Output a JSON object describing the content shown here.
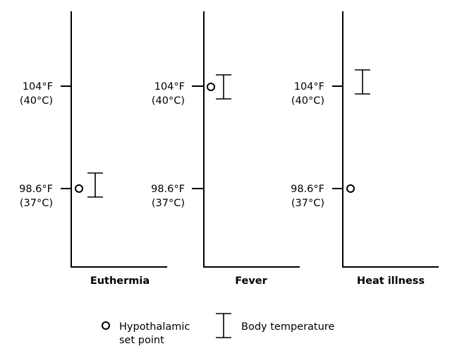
{
  "panels": [
    {
      "title": "Euthermia",
      "ticks": {
        "high": {
          "f": "104°F",
          "c": "(40°C)"
        },
        "low": {
          "f": "98.6°F",
          "c": "(37°C)"
        }
      },
      "set_point": "98.6°F",
      "body_temperature_range": "around 98.6°F"
    },
    {
      "title": "Fever",
      "ticks": {
        "high": {
          "f": "104°F",
          "c": "(40°C)"
        },
        "low": {
          "f": "98.6°F",
          "c": "(37°C)"
        }
      },
      "set_point": "104°F",
      "body_temperature_range": "around 104°F"
    },
    {
      "title": "Heat illness",
      "ticks": {
        "high": {
          "f": "104°F",
          "c": "(40°C)"
        },
        "low": {
          "f": "98.6°F",
          "c": "(37°C)"
        }
      },
      "set_point": "98.6°F",
      "body_temperature_range": "around/above 104°F"
    }
  ],
  "legend": {
    "set_point_line1": "Hypothalamic",
    "set_point_line2": "set point",
    "body_temp": "Body temperature"
  }
}
